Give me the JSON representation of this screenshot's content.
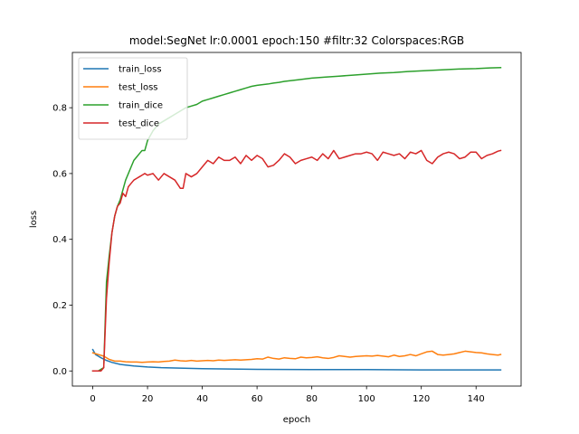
{
  "chart_data": {
    "type": "line",
    "title": "model:SegNet lr:0.0001 epoch:150 #filtr:32 Colorspaces:RGB",
    "xlabel": "epoch",
    "ylabel": "loss",
    "xlim": [
      -7.45,
      156.45
    ],
    "ylim": [
      -0.046,
      0.968
    ],
    "xticks": [
      0,
      20,
      40,
      60,
      80,
      100,
      120,
      140
    ],
    "yticks": [
      0.0,
      0.2,
      0.4,
      0.6,
      0.8
    ],
    "ytick_labels": [
      "0.0",
      "0.2",
      "0.4",
      "0.6",
      "0.8"
    ],
    "grid": false,
    "legend_position": "upper-left",
    "series": [
      {
        "name": "train_loss",
        "color": "#1f77b4",
        "x": [
          0,
          1,
          2,
          3,
          4,
          5,
          6,
          7,
          8,
          10,
          12,
          15,
          20,
          25,
          30,
          40,
          50,
          60,
          80,
          100,
          120,
          140,
          149
        ],
        "values": [
          0.065,
          0.05,
          0.045,
          0.04,
          0.036,
          0.032,
          0.029,
          0.026,
          0.024,
          0.02,
          0.018,
          0.015,
          0.012,
          0.01,
          0.009,
          0.007,
          0.006,
          0.005,
          0.004,
          0.004,
          0.003,
          0.003,
          0.003
        ]
      },
      {
        "name": "test_loss",
        "color": "#ff7f0e",
        "x": [
          0,
          2,
          4,
          6,
          8,
          10,
          12,
          14,
          16,
          18,
          20,
          22,
          24,
          26,
          28,
          30,
          32,
          34,
          36,
          38,
          40,
          42,
          44,
          46,
          48,
          50,
          52,
          54,
          56,
          58,
          60,
          62,
          64,
          66,
          68,
          70,
          72,
          74,
          76,
          78,
          80,
          82,
          84,
          86,
          88,
          90,
          92,
          94,
          96,
          98,
          100,
          102,
          104,
          106,
          108,
          110,
          112,
          114,
          116,
          118,
          120,
          122,
          124,
          126,
          128,
          130,
          132,
          134,
          136,
          138,
          140,
          142,
          144,
          146,
          148,
          149
        ],
        "values": [
          0.055,
          0.05,
          0.045,
          0.035,
          0.03,
          0.03,
          0.028,
          0.027,
          0.027,
          0.026,
          0.027,
          0.028,
          0.027,
          0.029,
          0.03,
          0.033,
          0.031,
          0.03,
          0.032,
          0.03,
          0.031,
          0.032,
          0.031,
          0.033,
          0.032,
          0.033,
          0.034,
          0.033,
          0.034,
          0.035,
          0.037,
          0.036,
          0.042,
          0.038,
          0.036,
          0.04,
          0.038,
          0.037,
          0.042,
          0.04,
          0.041,
          0.043,
          0.04,
          0.038,
          0.041,
          0.046,
          0.044,
          0.042,
          0.044,
          0.045,
          0.046,
          0.045,
          0.047,
          0.045,
          0.043,
          0.048,
          0.044,
          0.046,
          0.05,
          0.046,
          0.052,
          0.058,
          0.06,
          0.05,
          0.048,
          0.05,
          0.052,
          0.056,
          0.06,
          0.058,
          0.056,
          0.055,
          0.052,
          0.05,
          0.048,
          0.05
        ]
      },
      {
        "name": "train_dice",
        "color": "#2ca02c",
        "x": [
          0,
          1,
          2,
          3,
          4,
          5,
          6,
          7,
          8,
          9,
          10,
          11,
          12,
          13,
          14,
          15,
          16,
          17,
          18,
          19,
          20,
          22,
          24,
          26,
          28,
          30,
          32,
          34,
          36,
          38,
          40,
          42,
          44,
          46,
          48,
          50,
          52,
          54,
          56,
          58,
          60,
          62,
          64,
          66,
          68,
          70,
          75,
          80,
          85,
          90,
          95,
          100,
          105,
          110,
          115,
          120,
          125,
          130,
          135,
          140,
          145,
          149
        ],
        "values": [
          0.0,
          0.0,
          0.0,
          0.005,
          0.01,
          0.27,
          0.35,
          0.42,
          0.47,
          0.5,
          0.52,
          0.55,
          0.58,
          0.6,
          0.62,
          0.64,
          0.65,
          0.66,
          0.67,
          0.67,
          0.7,
          0.73,
          0.75,
          0.76,
          0.77,
          0.78,
          0.79,
          0.8,
          0.805,
          0.81,
          0.82,
          0.825,
          0.83,
          0.835,
          0.84,
          0.845,
          0.85,
          0.855,
          0.86,
          0.865,
          0.868,
          0.87,
          0.872,
          0.875,
          0.877,
          0.88,
          0.885,
          0.89,
          0.893,
          0.896,
          0.899,
          0.902,
          0.905,
          0.907,
          0.91,
          0.912,
          0.914,
          0.916,
          0.918,
          0.919,
          0.921,
          0.922
        ]
      },
      {
        "name": "test_dice",
        "color": "#d62728",
        "x": [
          0,
          2,
          3,
          4,
          5,
          6,
          7,
          8,
          9,
          10,
          11,
          12,
          13,
          14,
          15,
          16,
          17,
          18,
          19,
          20,
          22,
          24,
          26,
          28,
          30,
          32,
          33,
          34,
          36,
          38,
          40,
          42,
          44,
          46,
          48,
          50,
          52,
          54,
          56,
          58,
          60,
          62,
          64,
          66,
          68,
          70,
          72,
          74,
          76,
          78,
          80,
          82,
          84,
          86,
          88,
          90,
          92,
          94,
          96,
          98,
          100,
          102,
          104,
          106,
          108,
          110,
          112,
          114,
          116,
          118,
          120,
          122,
          124,
          126,
          128,
          130,
          132,
          134,
          136,
          138,
          140,
          142,
          144,
          146,
          148,
          149
        ],
        "values": [
          0.0,
          0.0,
          0.0,
          0.01,
          0.22,
          0.33,
          0.42,
          0.47,
          0.5,
          0.51,
          0.54,
          0.53,
          0.56,
          0.57,
          0.58,
          0.585,
          0.59,
          0.595,
          0.6,
          0.595,
          0.6,
          0.58,
          0.6,
          0.59,
          0.58,
          0.555,
          0.555,
          0.6,
          0.59,
          0.6,
          0.62,
          0.64,
          0.63,
          0.65,
          0.64,
          0.64,
          0.65,
          0.63,
          0.655,
          0.64,
          0.655,
          0.645,
          0.62,
          0.625,
          0.64,
          0.66,
          0.65,
          0.63,
          0.64,
          0.645,
          0.65,
          0.64,
          0.66,
          0.645,
          0.67,
          0.645,
          0.65,
          0.655,
          0.66,
          0.66,
          0.665,
          0.66,
          0.64,
          0.665,
          0.66,
          0.655,
          0.66,
          0.645,
          0.665,
          0.66,
          0.67,
          0.64,
          0.63,
          0.65,
          0.66,
          0.665,
          0.66,
          0.645,
          0.65,
          0.665,
          0.665,
          0.645,
          0.655,
          0.66,
          0.668,
          0.67
        ]
      }
    ]
  }
}
